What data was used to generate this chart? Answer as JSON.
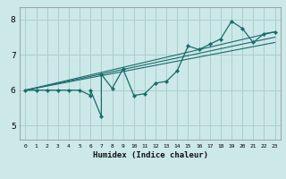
{
  "xlabel": "Humidex (Indice chaleur)",
  "ylabel": "",
  "bg_color": "#cce8e8",
  "grid_color": "#aacece",
  "line_color": "#1a6b6b",
  "xlim": [
    -0.5,
    23.5
  ],
  "ylim": [
    4.6,
    8.35
  ],
  "xticks": [
    0,
    1,
    2,
    3,
    4,
    5,
    6,
    7,
    8,
    9,
    10,
    11,
    12,
    13,
    14,
    15,
    16,
    17,
    18,
    19,
    20,
    21,
    22,
    23
  ],
  "yticks": [
    5,
    6,
    7,
    8
  ],
  "data_x": [
    0,
    1,
    2,
    3,
    4,
    5,
    6,
    6,
    7,
    7,
    8,
    9,
    10,
    11,
    12,
    13,
    14,
    15,
    16,
    17,
    18,
    19,
    20,
    21,
    22,
    23
  ],
  "data_y": [
    6.0,
    6.0,
    6.0,
    6.0,
    6.0,
    6.0,
    5.85,
    6.0,
    5.25,
    6.45,
    6.05,
    6.6,
    5.85,
    5.9,
    6.2,
    6.25,
    6.55,
    7.25,
    7.15,
    7.3,
    7.45,
    7.95,
    7.75,
    7.35,
    7.6,
    7.65
  ],
  "trend1_x": [
    0,
    23
  ],
  "trend1_y": [
    6.0,
    7.65
  ],
  "trend2_x": [
    0,
    23
  ],
  "trend2_y": [
    6.0,
    7.5
  ],
  "trend3_x": [
    0,
    23
  ],
  "trend3_y": [
    6.0,
    7.35
  ]
}
